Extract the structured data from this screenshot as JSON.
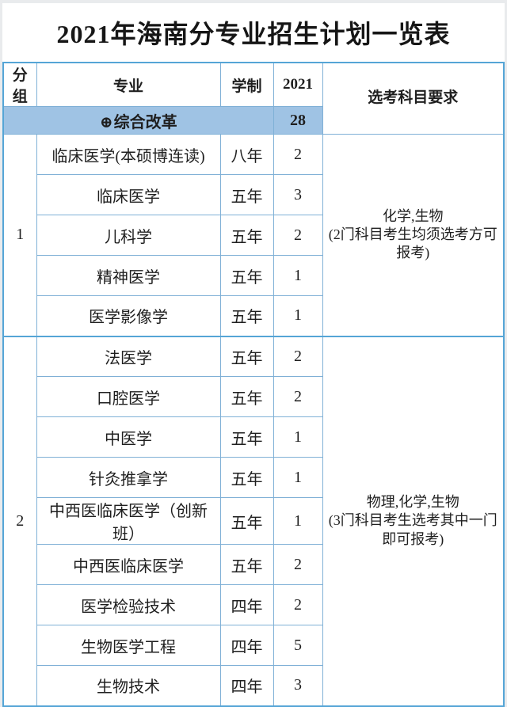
{
  "title": "2021年海南分专业招生计划一览表",
  "table": {
    "headers": {
      "group": "分组",
      "major": "专业",
      "duration": "学制",
      "year": "2021",
      "subjects": "选考科目要求"
    },
    "summary_row": {
      "icon": "⊕",
      "label": "综合改革",
      "total": "28"
    },
    "groups": [
      {
        "id": "1",
        "requirement": "化学,生物\n(2门科目考生均须选考方可\n报考)",
        "rows": [
          {
            "major": "临床医学(本硕博连读)",
            "duration": "八年",
            "plan": "2"
          },
          {
            "major": "临床医学",
            "duration": "五年",
            "plan": "3"
          },
          {
            "major": "儿科学",
            "duration": "五年",
            "plan": "2"
          },
          {
            "major": "精神医学",
            "duration": "五年",
            "plan": "1"
          },
          {
            "major": "医学影像学",
            "duration": "五年",
            "plan": "1"
          }
        ]
      },
      {
        "id": "2",
        "requirement": "物理,化学,生物\n(3门科目考生选考其中一门\n即可报考)",
        "rows": [
          {
            "major": "法医学",
            "duration": "五年",
            "plan": "2"
          },
          {
            "major": "口腔医学",
            "duration": "五年",
            "plan": "2"
          },
          {
            "major": "中医学",
            "duration": "五年",
            "plan": "1"
          },
          {
            "major": "针灸推拿学",
            "duration": "五年",
            "plan": "1"
          },
          {
            "major": "中西医临床医学（创新班）",
            "duration": "五年",
            "plan": "1"
          },
          {
            "major": "中西医临床医学",
            "duration": "五年",
            "plan": "2"
          },
          {
            "major": "医学检验技术",
            "duration": "四年",
            "plan": "2"
          },
          {
            "major": "生物医学工程",
            "duration": "四年",
            "plan": "5"
          },
          {
            "major": "生物技术",
            "duration": "四年",
            "plan": "3"
          }
        ]
      }
    ]
  },
  "colors": {
    "page-bg": "#e9ebed",
    "card-bg": "#ffffff",
    "accent-fill": "#9fc3e4",
    "border": "#7fb0d6",
    "border-strong": "#55a5d6",
    "text": "#1f1f1f"
  }
}
